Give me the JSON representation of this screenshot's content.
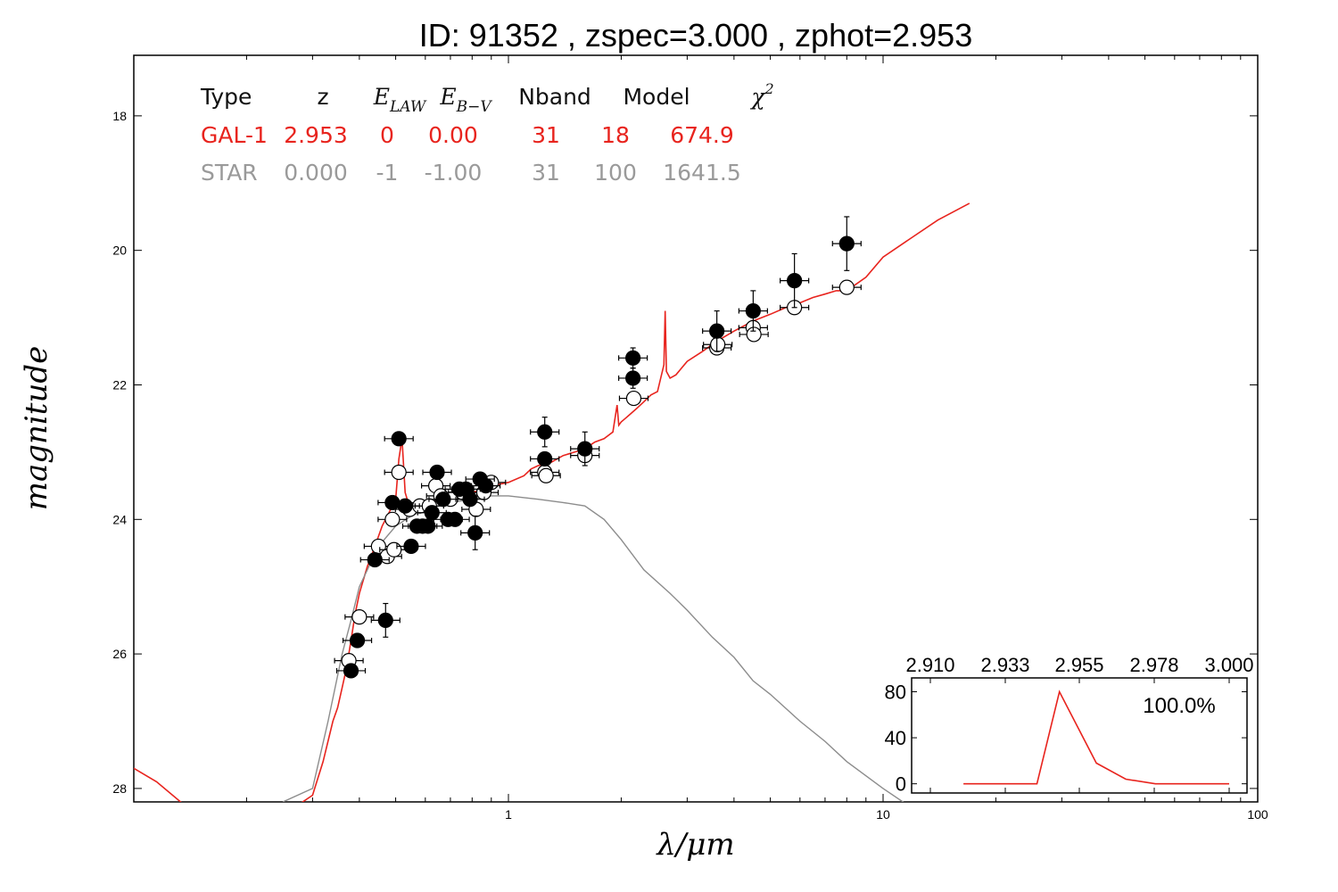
{
  "chart_data": {
    "type": "scatter",
    "title": "ID:  91352 , zspec=3.000 , zphot=2.953",
    "xlabel": "λ/μm",
    "ylabel": "magnitude",
    "x_scale": "log",
    "xlim": [
      0.1,
      100
    ],
    "ylim": [
      28.2,
      17.1
    ],
    "y_inverted": true,
    "x_ticks": [
      "1",
      "10",
      "100"
    ],
    "y_ticks": [
      "18",
      "20",
      "22",
      "24",
      "26",
      "28"
    ],
    "fit_table": {
      "headers": [
        "Type",
        "z",
        "E_LAW",
        "E_B−V",
        "Nband",
        "Model",
        "χ²"
      ],
      "rows": [
        {
          "type": "GAL-1",
          "z": "2.953",
          "e_law": "0",
          "e_bv": "0.00",
          "nband": "31",
          "model": "18",
          "chi2": "674.9",
          "color": "#e8241e"
        },
        {
          "type": "STAR",
          "z": "0.000",
          "e_law": "-1",
          "e_bv": "-1.00",
          "nband": "31",
          "model": "100",
          "chi2": "1641.5",
          "color": "#9a9a9a"
        }
      ]
    },
    "series": [
      {
        "role": "galaxy model",
        "color": "#e8241e",
        "x": [
          0.1,
          0.115,
          0.14,
          0.2,
          0.25,
          0.3,
          0.32,
          0.34,
          0.35,
          0.36,
          0.37,
          0.38,
          0.39,
          0.4,
          0.42,
          0.44,
          0.46,
          0.48,
          0.5,
          0.51,
          0.52,
          0.53,
          0.55,
          0.6,
          0.65,
          0.7,
          0.75,
          0.8,
          0.85,
          0.9,
          1.0,
          1.1,
          1.15,
          1.2,
          1.3,
          1.4,
          1.5,
          1.6,
          1.7,
          1.8,
          1.9,
          1.95,
          1.97,
          2.0,
          2.05,
          2.1,
          2.2,
          2.3,
          2.4,
          2.5,
          2.6,
          2.62,
          2.64,
          2.7,
          2.8,
          3.0,
          3.3,
          3.6,
          4.0,
          4.5,
          5.0,
          5.5,
          6.0,
          6.5,
          7.0,
          7.5,
          8.0,
          9.0,
          10.0,
          12.0,
          14.0,
          17.0
        ],
        "y": [
          27.7,
          27.9,
          28.3,
          28.6,
          28.4,
          28.1,
          27.6,
          27.0,
          26.8,
          26.5,
          26.2,
          25.8,
          25.4,
          25.1,
          24.7,
          24.4,
          24.1,
          23.9,
          23.7,
          23.1,
          22.8,
          23.6,
          23.9,
          23.8,
          23.7,
          23.7,
          23.65,
          23.6,
          23.55,
          23.5,
          23.45,
          23.35,
          23.25,
          23.2,
          23.15,
          23.05,
          23.0,
          22.95,
          22.85,
          22.8,
          22.7,
          22.3,
          22.6,
          22.55,
          22.5,
          22.45,
          22.35,
          22.25,
          22.15,
          22.1,
          21.7,
          20.9,
          21.8,
          21.9,
          21.85,
          21.65,
          21.5,
          21.35,
          21.2,
          21.05,
          20.95,
          20.85,
          20.78,
          20.7,
          20.65,
          20.6,
          20.6,
          20.4,
          20.1,
          19.8,
          19.55,
          19.3
        ]
      },
      {
        "role": "star model",
        "color": "#8c8c8c",
        "x": [
          0.25,
          0.3,
          0.33,
          0.36,
          0.38,
          0.4,
          0.45,
          0.5,
          0.55,
          0.6,
          0.7,
          0.8,
          0.9,
          1.0,
          1.2,
          1.4,
          1.6,
          1.8,
          2.0,
          2.3,
          2.7,
          3.0,
          3.5,
          4.0,
          4.5,
          5.0,
          6.0,
          7.0,
          8.0,
          10.0,
          12.0,
          14.0
        ],
        "y": [
          28.2,
          28.0,
          27.0,
          26.0,
          25.5,
          25.0,
          24.4,
          24.1,
          23.95,
          23.85,
          23.75,
          23.7,
          23.65,
          23.65,
          23.7,
          23.75,
          23.8,
          24.0,
          24.3,
          24.75,
          25.1,
          25.35,
          25.75,
          26.05,
          26.4,
          26.6,
          27.0,
          27.3,
          27.6,
          28.0,
          28.3,
          28.5
        ]
      }
    ],
    "obs_points": [
      {
        "x": 0.38,
        "y": 26.25
      },
      {
        "x": 0.395,
        "y": 25.8
      },
      {
        "x": 0.44,
        "y": 24.6
      },
      {
        "x": 0.47,
        "y": 25.5,
        "yerr": 0.25
      },
      {
        "x": 0.49,
        "y": 23.75
      },
      {
        "x": 0.51,
        "y": 22.8
      },
      {
        "x": 0.53,
        "y": 23.8
      },
      {
        "x": 0.55,
        "y": 24.4
      },
      {
        "x": 0.57,
        "y": 24.1
      },
      {
        "x": 0.59,
        "y": 24.1
      },
      {
        "x": 0.61,
        "y": 24.1
      },
      {
        "x": 0.625,
        "y": 23.9
      },
      {
        "x": 0.645,
        "y": 23.3
      },
      {
        "x": 0.67,
        "y": 23.7
      },
      {
        "x": 0.69,
        "y": 24.0
      },
      {
        "x": 0.72,
        "y": 24.0
      },
      {
        "x": 0.74,
        "y": 23.55
      },
      {
        "x": 0.77,
        "y": 23.55
      },
      {
        "x": 0.79,
        "y": 23.7
      },
      {
        "x": 0.815,
        "y": 24.2,
        "yerr": 0.25
      },
      {
        "x": 0.84,
        "y": 23.4
      },
      {
        "x": 0.87,
        "y": 23.5
      },
      {
        "x": 1.25,
        "y": 22.7,
        "yerr": 0.22
      },
      {
        "x": 1.25,
        "y": 23.1
      },
      {
        "x": 1.6,
        "y": 22.95,
        "yerr": 0.25
      },
      {
        "x": 2.15,
        "y": 21.6,
        "yerr": 0.15
      },
      {
        "x": 2.15,
        "y": 21.9,
        "yerr": 0.15
      },
      {
        "x": 3.6,
        "y": 21.2,
        "yerr": 0.3
      },
      {
        "x": 4.5,
        "y": 20.9,
        "yerr": 0.3
      },
      {
        "x": 5.8,
        "y": 20.45,
        "yerr": 0.4
      },
      {
        "x": 8.0,
        "y": 19.9,
        "yerr": 0.4
      }
    ],
    "model_points": [
      {
        "x": 0.375,
        "y": 26.1
      },
      {
        "x": 0.4,
        "y": 25.45
      },
      {
        "x": 0.45,
        "y": 24.4
      },
      {
        "x": 0.475,
        "y": 24.55
      },
      {
        "x": 0.49,
        "y": 24.0
      },
      {
        "x": 0.495,
        "y": 24.45
      },
      {
        "x": 0.51,
        "y": 23.3
      },
      {
        "x": 0.545,
        "y": 23.85
      },
      {
        "x": 0.58,
        "y": 23.8
      },
      {
        "x": 0.615,
        "y": 23.8
      },
      {
        "x": 0.64,
        "y": 23.5
      },
      {
        "x": 0.66,
        "y": 23.65
      },
      {
        "x": 0.7,
        "y": 23.7
      },
      {
        "x": 0.755,
        "y": 23.6
      },
      {
        "x": 0.82,
        "y": 23.85
      },
      {
        "x": 0.86,
        "y": 23.6
      },
      {
        "x": 0.9,
        "y": 23.45
      },
      {
        "x": 1.25,
        "y": 23.3
      },
      {
        "x": 1.26,
        "y": 23.35
      },
      {
        "x": 1.6,
        "y": 23.05
      },
      {
        "x": 2.16,
        "y": 22.2
      },
      {
        "x": 3.6,
        "y": 21.45
      },
      {
        "x": 3.62,
        "y": 21.4
      },
      {
        "x": 4.5,
        "y": 21.15
      },
      {
        "x": 4.52,
        "y": 21.25
      },
      {
        "x": 5.8,
        "y": 20.85
      },
      {
        "x": 8.0,
        "y": 20.55
      }
    ],
    "pdz_inset": {
      "x_ticks": [
        "2.910",
        "2.933",
        "2.955",
        "2.978",
        "3.000"
      ],
      "y_ticks": [
        "0",
        "40",
        "80"
      ],
      "xlim": [
        2.9,
        3.0
      ],
      "ylim": [
        -8,
        92
      ],
      "label": "100.0%",
      "curve_x": [
        2.91,
        2.9349,
        2.9425,
        2.955,
        2.965,
        2.975,
        2.985,
        3.0
      ],
      "curve_y": [
        0,
        0,
        80,
        18,
        4,
        0,
        0,
        0
      ],
      "color": "#e8241e"
    }
  }
}
